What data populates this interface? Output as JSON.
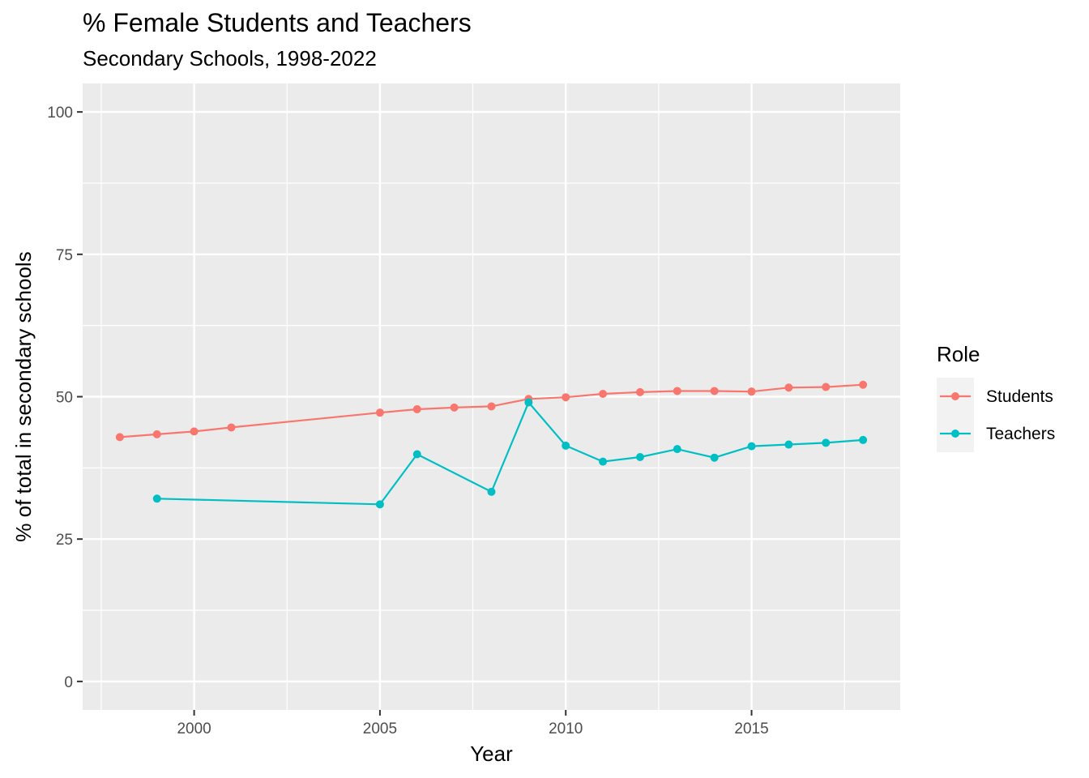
{
  "chart_data": {
    "type": "line",
    "title": "% Female Students and Teachers",
    "subtitle": "Secondary Schools, 1998-2022",
    "xlabel": "Year",
    "ylabel": "% of total in secondary schools",
    "xlim": [
      1997.0,
      2019.0
    ],
    "ylim": [
      -5,
      105
    ],
    "x_ticks": [
      2000,
      2005,
      2010,
      2015
    ],
    "x_minor_ticks": [
      1997.5,
      2002.5,
      2007.5,
      2012.5,
      2017.5
    ],
    "y_ticks": [
      0,
      25,
      50,
      75,
      100
    ],
    "y_minor_ticks": [
      12.5,
      37.5,
      62.5,
      87.5
    ],
    "grid": true,
    "legend": {
      "title": "Role",
      "position": "right"
    },
    "series": [
      {
        "name": "Students",
        "color": "#F8766D",
        "x": [
          1998,
          1999,
          2000,
          2001,
          2005,
          2006,
          2007,
          2008,
          2009,
          2010,
          2011,
          2012,
          2013,
          2014,
          2015,
          2016,
          2017,
          2018
        ],
        "values": [
          42.9,
          43.4,
          43.9,
          44.6,
          47.2,
          47.8,
          48.1,
          48.3,
          49.6,
          49.9,
          50.5,
          50.8,
          51.0,
          51.0,
          50.9,
          51.6,
          51.7,
          52.1
        ]
      },
      {
        "name": "Teachers",
        "color": "#00BFC4",
        "x": [
          1999,
          2005,
          2006,
          2008,
          2009,
          2010,
          2011,
          2012,
          2013,
          2014,
          2015,
          2016,
          2017,
          2018
        ],
        "values": [
          32.1,
          31.1,
          39.9,
          33.3,
          49.0,
          41.4,
          38.6,
          39.4,
          40.8,
          39.3,
          41.3,
          41.6,
          41.9,
          42.4
        ]
      }
    ]
  }
}
